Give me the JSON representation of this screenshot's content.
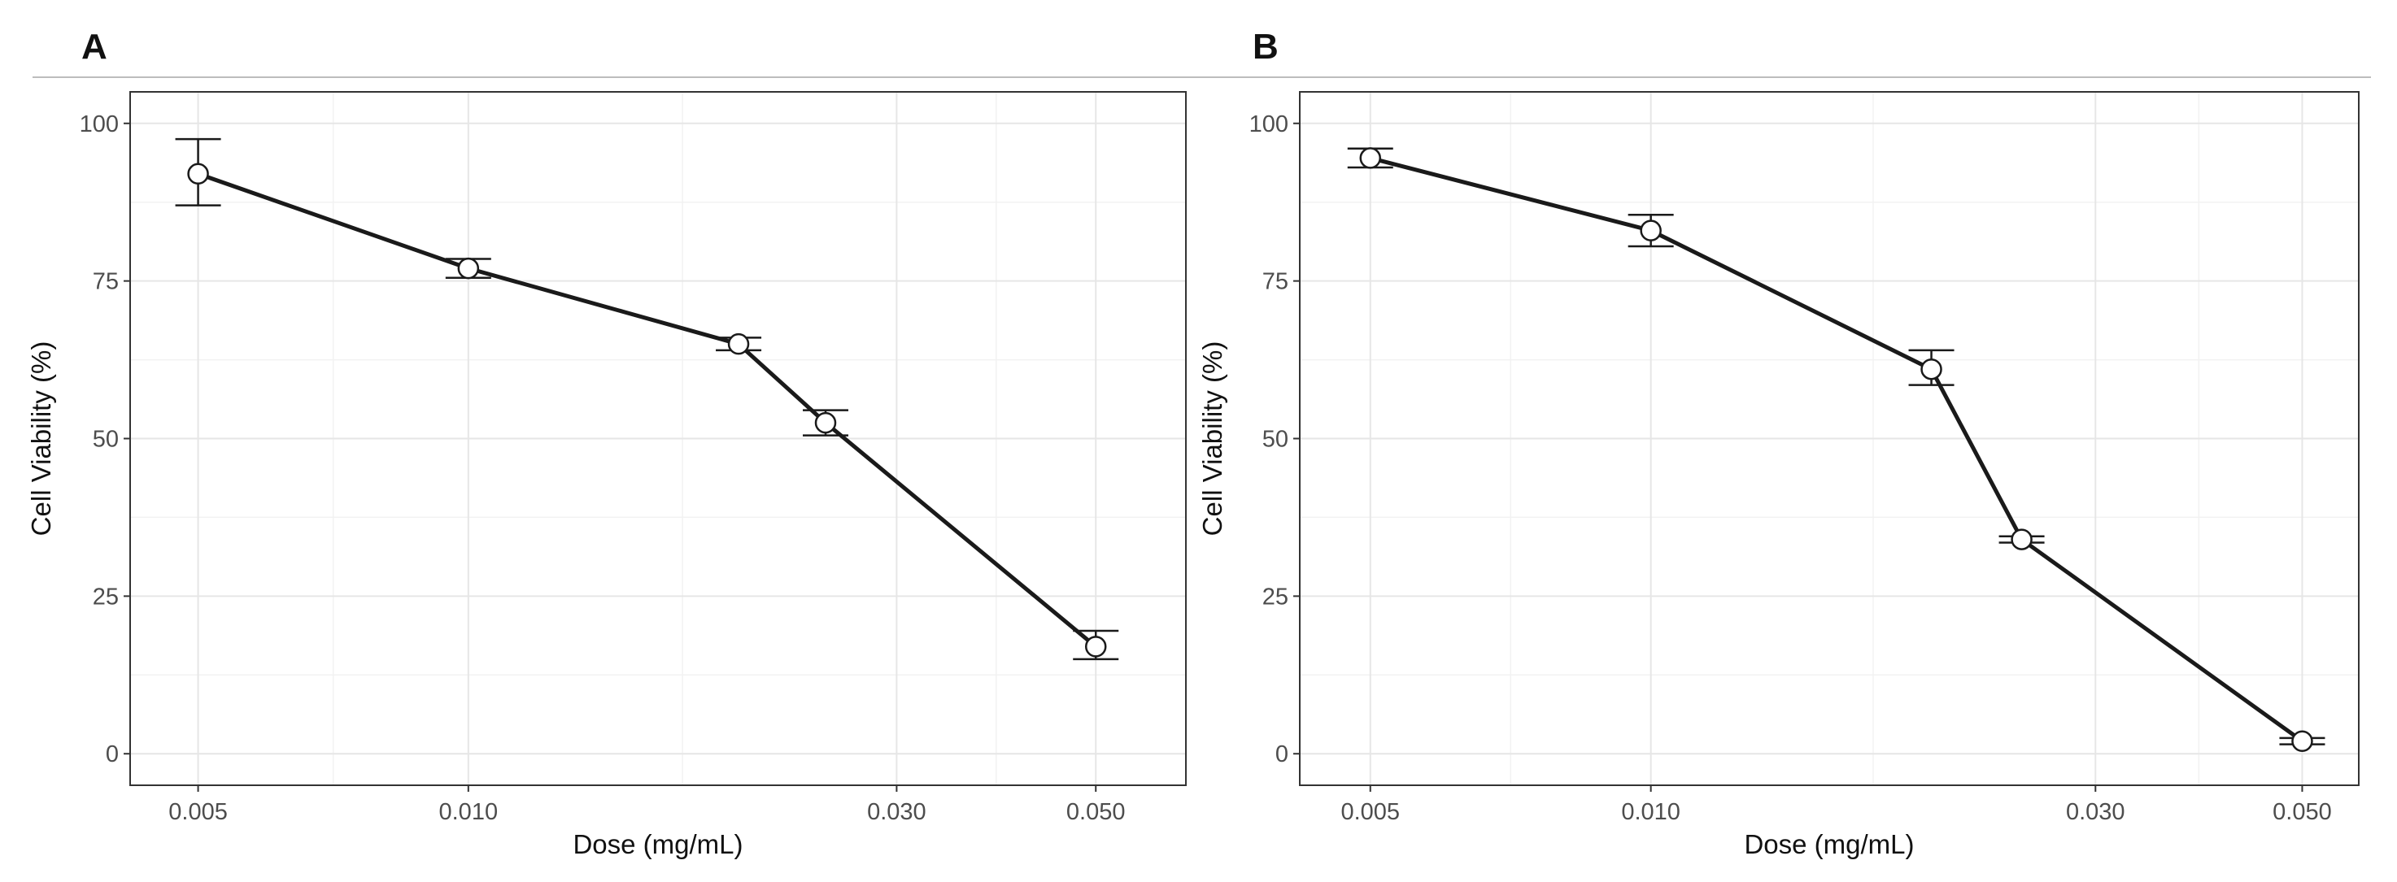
{
  "chart_data": [
    {
      "panel_label": "A",
      "type": "line",
      "x_scale": "log",
      "xlabel": "Dose (mg/mL)",
      "ylabel": "Cell Viability (%)",
      "x_ticks": [
        "0.005",
        "0.010",
        "0.030",
        "0.050"
      ],
      "y_ticks": [
        "0",
        "25",
        "50",
        "75",
        "100"
      ],
      "xlim": [
        0.0042,
        0.063
      ],
      "ylim": [
        -5,
        105
      ],
      "grid": true,
      "legend": "none",
      "points": [
        {
          "x": 0.005,
          "y": 92,
          "err_low": 87,
          "err_high": 97.5
        },
        {
          "x": 0.01,
          "y": 77,
          "err_low": 75.5,
          "err_high": 78.5
        },
        {
          "x": 0.02,
          "y": 65,
          "err_low": 64,
          "err_high": 66
        },
        {
          "x": 0.025,
          "y": 52.5,
          "err_low": 50.5,
          "err_high": 54.5
        },
        {
          "x": 0.05,
          "y": 17,
          "err_low": 15,
          "err_high": 19.5
        }
      ]
    },
    {
      "panel_label": "B",
      "type": "line",
      "x_scale": "log",
      "xlabel": "Dose (mg/mL)",
      "ylabel": "Cell Viability (%)",
      "x_ticks": [
        "0.005",
        "0.010",
        "0.030",
        "0.050"
      ],
      "y_ticks": [
        "0",
        "25",
        "50",
        "75",
        "100"
      ],
      "xlim": [
        0.0042,
        0.0575
      ],
      "ylim": [
        -5,
        105
      ],
      "grid": true,
      "legend": "none",
      "points": [
        {
          "x": 0.005,
          "y": 94.5,
          "err_low": 93,
          "err_high": 96
        },
        {
          "x": 0.01,
          "y": 83,
          "err_low": 80.5,
          "err_high": 85.5
        },
        {
          "x": 0.02,
          "y": 61,
          "err_low": 58.5,
          "err_high": 64
        },
        {
          "x": 0.025,
          "y": 34,
          "err_low": 33.5,
          "err_high": 34.5
        },
        {
          "x": 0.05,
          "y": 2,
          "err_low": 1.5,
          "err_high": 2.5
        }
      ]
    }
  ]
}
